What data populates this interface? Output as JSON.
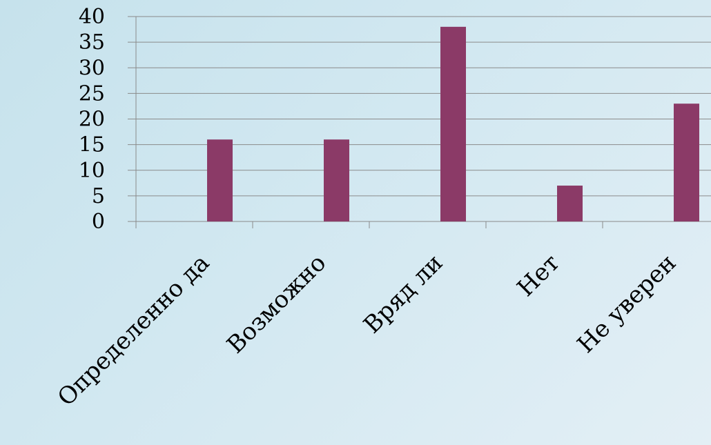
{
  "chart_data": {
    "type": "bar",
    "categories": [
      "Определенно да",
      "Возможно",
      "Вряд ли",
      "Нет",
      "Не уверен"
    ],
    "series": [
      {
        "values": [
          16,
          16,
          38,
          7,
          23
        ]
      }
    ],
    "ylim": [
      0,
      40
    ],
    "yticks": [
      0,
      5,
      10,
      15,
      20,
      25,
      30,
      35,
      40
    ],
    "grid": true,
    "title": "",
    "xlabel": "",
    "ylabel": "",
    "colors": {
      "bar": "#8b3a67",
      "grid": "#8a8a8a",
      "axis": "#8a8a8a",
      "background": "#d2e8f1"
    }
  }
}
